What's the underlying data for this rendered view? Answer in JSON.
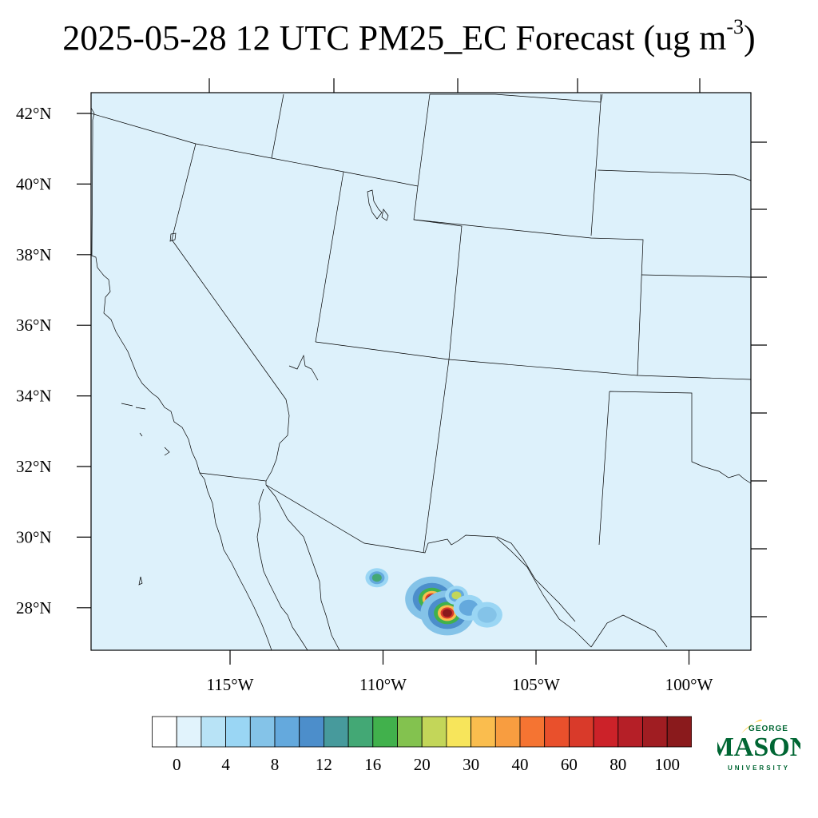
{
  "title": {
    "main": "2025-05-28 12 UTC PM25_EC Forecast (ug m",
    "superscript": "-3",
    "suffix": ")"
  },
  "map": {
    "background_color": "#ddf1fb",
    "lat_labels": [
      "42°N",
      "40°N",
      "38°N",
      "36°N",
      "34°N",
      "32°N",
      "30°N",
      "28°N"
    ],
    "lon_labels": [
      "115°W",
      "110°W",
      "105°W",
      "100°W"
    ],
    "hotspots": [
      {
        "lon": -110.2,
        "lat": 28.85,
        "value": 14
      },
      {
        "lon": -108.4,
        "lat": 28.25,
        "value": 100
      },
      {
        "lon": -107.9,
        "lat": 27.85,
        "value": 100
      },
      {
        "lon": -107.6,
        "lat": 28.35,
        "value": 20
      },
      {
        "lon": -107.2,
        "lat": 28.0,
        "value": 8
      },
      {
        "lon": -106.6,
        "lat": 27.8,
        "value": 6
      }
    ]
  },
  "colorbar": {
    "colors": [
      "#ffffff",
      "#e1f3fc",
      "#b8e3f6",
      "#9ad6f4",
      "#84c3e8",
      "#64a9dd",
      "#4c8ecb",
      "#479a9c",
      "#43a875",
      "#41b14c",
      "#83c24f",
      "#c3d659",
      "#f7e55b",
      "#fabd4e",
      "#f89d40",
      "#f57432",
      "#e9502c",
      "#d93a2a",
      "#cc2229",
      "#b51f27",
      "#a01d22",
      "#8a1a1c"
    ],
    "labels": [
      "0",
      "4",
      "8",
      "12",
      "16",
      "20",
      "30",
      "40",
      "60",
      "80",
      "100"
    ]
  },
  "logo": {
    "line1": "GEORGE",
    "line2": "MASON",
    "line3": "UNIVERSITY",
    "green": "#006633",
    "gold": "#ffcc33"
  }
}
